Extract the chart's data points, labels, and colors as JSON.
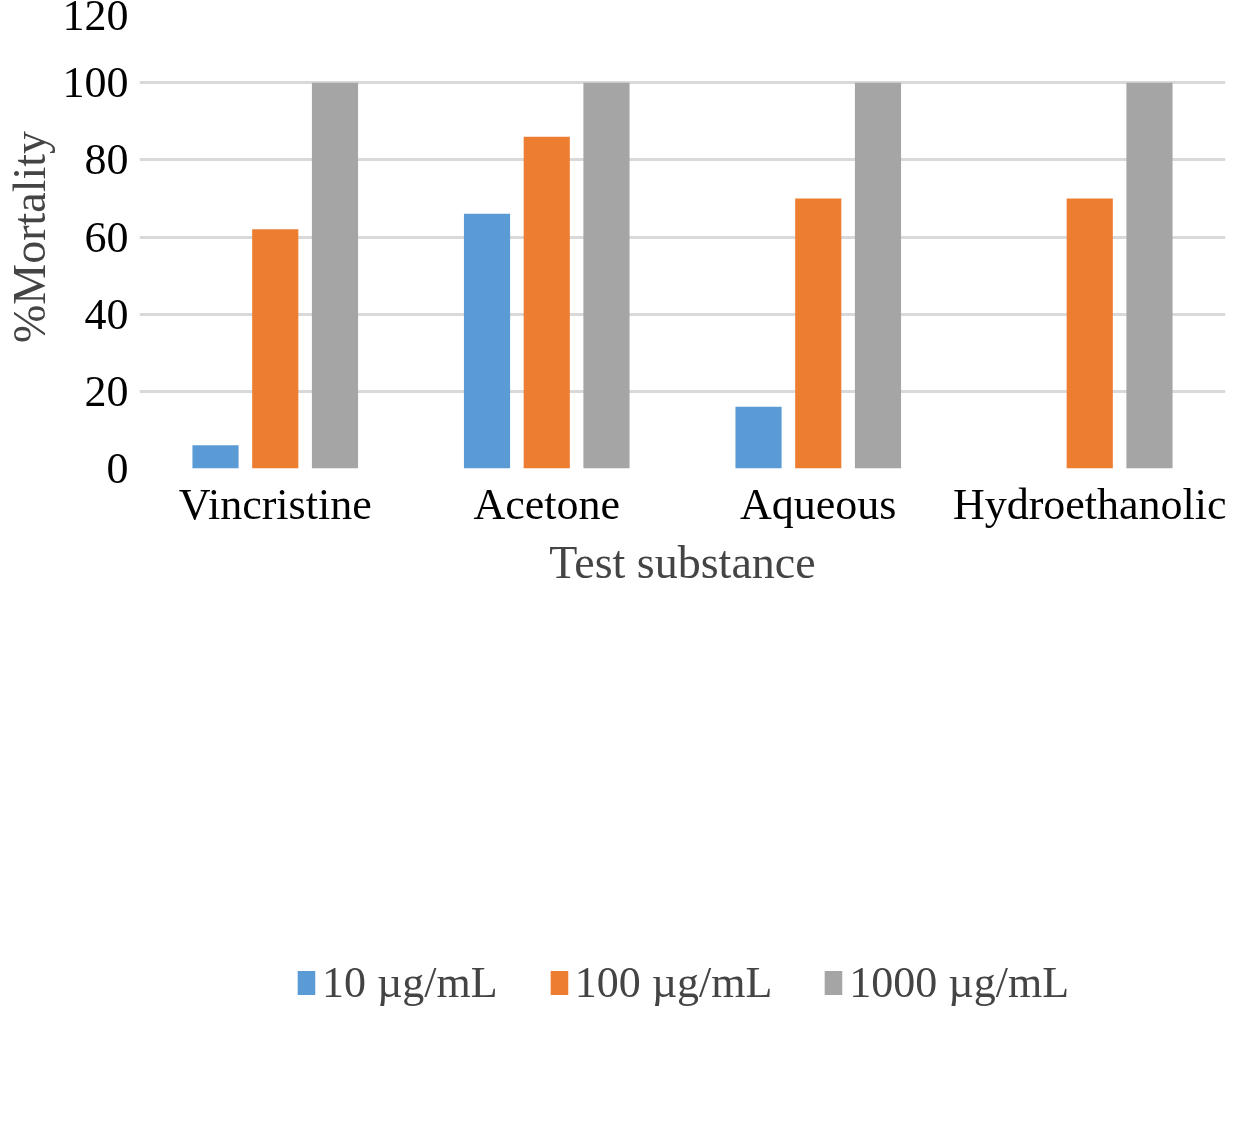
{
  "chart_data": {
    "type": "bar",
    "xlabel": "Test substance",
    "ylabel": "%Mortality",
    "categories": [
      "Vincristine",
      "Acetone",
      "Aqueous",
      "Hydroethanolic"
    ],
    "series": [
      {
        "name": "10 µg/mL",
        "color": "#5b9bd5",
        "values": [
          6,
          66,
          16,
          0
        ]
      },
      {
        "name": "100 µg/mL",
        "color": "#ed7d31",
        "values": [
          62,
          86,
          70,
          70
        ]
      },
      {
        "name": "1000 µg/mL",
        "color": "#a5a5a5",
        "values": [
          100,
          100,
          100,
          100
        ]
      }
    ],
    "ylim": [
      0,
      120
    ],
    "yticks": [
      0,
      20,
      40,
      60,
      80,
      100,
      120
    ],
    "grid": "y",
    "legend": "bottom"
  }
}
